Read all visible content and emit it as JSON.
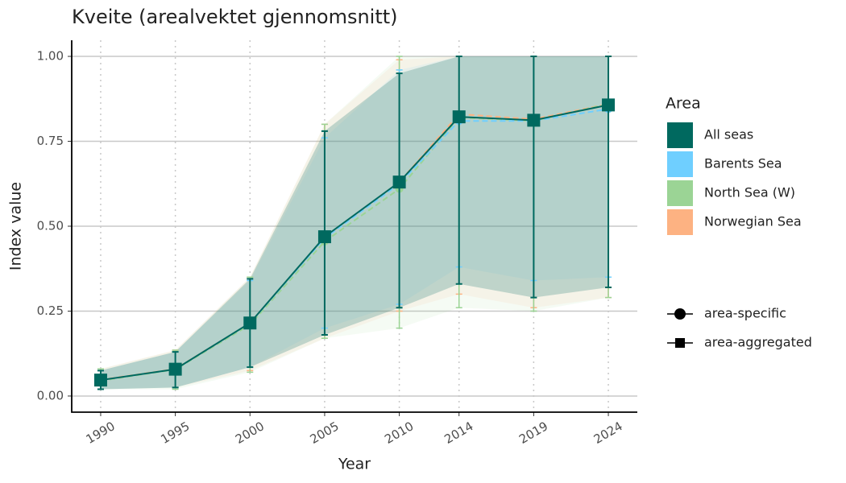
{
  "chart_data": {
    "type": "line",
    "title": "Kveite (arealvektet gjennomsnitt)",
    "x_label": "Year",
    "y_label": "Index value",
    "x": [
      1990,
      1995,
      2000,
      2005,
      2010,
      2014,
      2019,
      2024
    ],
    "xlim": [
      1988.06,
      2025.94
    ],
    "xticks": [
      1990,
      1995,
      2000,
      2005,
      2010,
      2014,
      2019,
      2024
    ],
    "ylim": [
      -0.0475,
      1.0475
    ],
    "yticks": [
      {
        "value": 0,
        "label": "0.00"
      },
      {
        "value": 0.25,
        "label": "0.25"
      },
      {
        "value": 0.5,
        "label": "0.50"
      },
      {
        "value": 0.75,
        "label": "0.75"
      },
      {
        "value": 1,
        "label": "1.00"
      }
    ],
    "grid": true,
    "legend_title": "Area",
    "shape_legend": [
      "area-specific",
      "area-aggregated"
    ],
    "series": [
      {
        "name": "All seas",
        "color": "#00695f",
        "shape": "square",
        "values": [
          0.047,
          0.079,
          0.215,
          0.469,
          0.63,
          0.822,
          0.812,
          0.857
        ],
        "lower": [
          0.02,
          0.025,
          0.085,
          0.18,
          0.26,
          0.33,
          0.29,
          0.32
        ],
        "upper": [
          0.075,
          0.13,
          0.345,
          0.78,
          0.95,
          1.0,
          1.0,
          1.0
        ]
      },
      {
        "name": "Barents Sea",
        "color": "#6fcfff",
        "shape": "circle",
        "values": [
          0.047,
          0.079,
          0.215,
          0.465,
          0.625,
          0.81,
          0.81,
          0.845
        ],
        "lower": [
          0.02,
          0.025,
          0.085,
          0.2,
          0.27,
          0.38,
          0.34,
          0.35
        ],
        "upper": [
          0.075,
          0.13,
          0.34,
          0.76,
          0.96,
          1.0,
          1.0,
          1.0
        ]
      },
      {
        "name": "North Sea (W)",
        "color": "#9bd495",
        "shape": "circle",
        "values": [
          0.045,
          0.078,
          0.21,
          0.455,
          0.61,
          0.82,
          0.81,
          0.86
        ],
        "lower": [
          0.02,
          0.02,
          0.07,
          0.17,
          0.2,
          0.26,
          0.25,
          0.29
        ],
        "upper": [
          0.08,
          0.135,
          0.35,
          0.8,
          1.0,
          1.0,
          1.0,
          1.0
        ]
      },
      {
        "name": "Norwegian Sea",
        "color": "#fdb282",
        "shape": "circle",
        "values": [
          0.048,
          0.08,
          0.215,
          0.465,
          0.63,
          0.83,
          0.815,
          0.86
        ],
        "lower": [
          0.02,
          0.025,
          0.075,
          0.17,
          0.25,
          0.3,
          0.26,
          0.29
        ],
        "upper": [
          0.08,
          0.135,
          0.35,
          0.8,
          0.99,
          1.0,
          1.0,
          1.0
        ]
      }
    ]
  }
}
